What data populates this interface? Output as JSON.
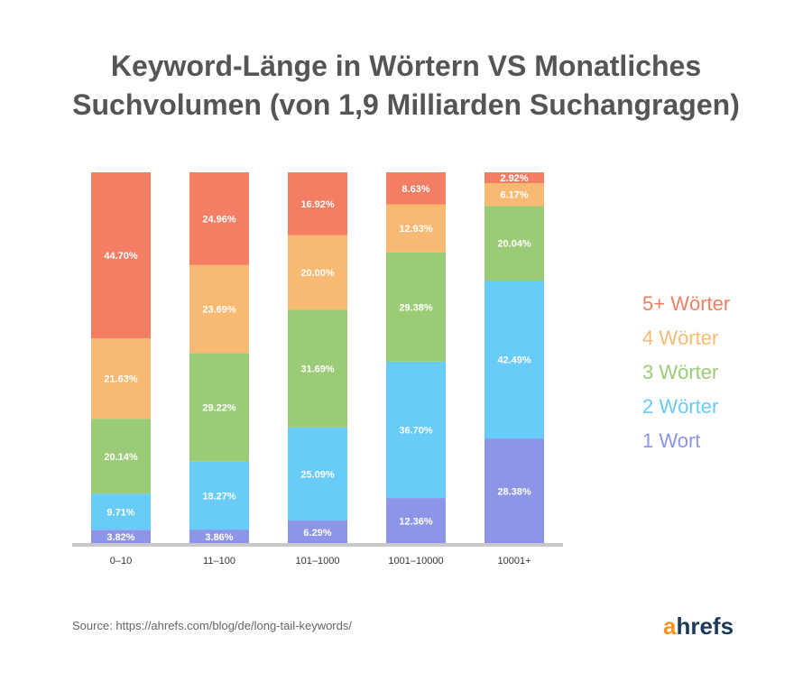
{
  "title_lines": [
    "Keyword-Länge in Wörtern VS Monatliches",
    "Suchvolumen (von 1,9 Milliarden Suchangragen)"
  ],
  "colors": {
    "1 Wort": "#8c95e6",
    "2 Wörter": "#68cbf8",
    "3 Wörter": "#9bcb77",
    "4 Wörter": "#f8ba72",
    "5+ Wörter": "#f47e63",
    "axis": "#c8c8c8",
    "label_text": "#ffffff"
  },
  "chart_data": {
    "type": "bar",
    "stacked": true,
    "normalized_percent": true,
    "categories": [
      "0–10",
      "11–100",
      "101–1000",
      "1001–10000",
      "10001+"
    ],
    "series": [
      {
        "name": "1 Wort",
        "values": [
          3.82,
          3.86,
          6.29,
          12.36,
          28.38
        ],
        "labels": [
          "3.82%",
          "3.86%",
          "6.29%",
          "12.36%",
          "28.38%"
        ]
      },
      {
        "name": "2 Wörter",
        "values": [
          9.71,
          18.27,
          25.09,
          36.7,
          42.49
        ],
        "labels": [
          "9.71%",
          "18.27%",
          "25.09%",
          "36.70%",
          "42.49%"
        ]
      },
      {
        "name": "3 Wörter",
        "values": [
          20.14,
          29.22,
          31.69,
          29.38,
          20.04
        ],
        "labels": [
          "20.14%",
          "29.22%",
          "31.69%",
          "29.38%",
          "20.04%"
        ]
      },
      {
        "name": "4 Wörter",
        "values": [
          21.63,
          23.69,
          20.0,
          12.93,
          6.17
        ],
        "labels": [
          "21.63%",
          "23.69%",
          "20.00%",
          "12.93%",
          "6.17%"
        ]
      },
      {
        "name": "5+ Wörter",
        "values": [
          44.7,
          24.96,
          16.92,
          8.63,
          2.92
        ],
        "labels": [
          "44.70%",
          "24.96%",
          "16.92%",
          "8.63%",
          "2.92%"
        ]
      }
    ],
    "legend_order": [
      "5+ Wörter",
      "4 Wörter",
      "3 Wörter",
      "2 Wörter",
      "1 Wort"
    ],
    "legend_placement": "right",
    "grid": false,
    "ylim": [
      0,
      100
    ]
  },
  "source_text": "Source:  https://ahrefs.com/blog/de/long-tail-keywords/",
  "logo": {
    "accent": "a",
    "rest": "hrefs"
  }
}
